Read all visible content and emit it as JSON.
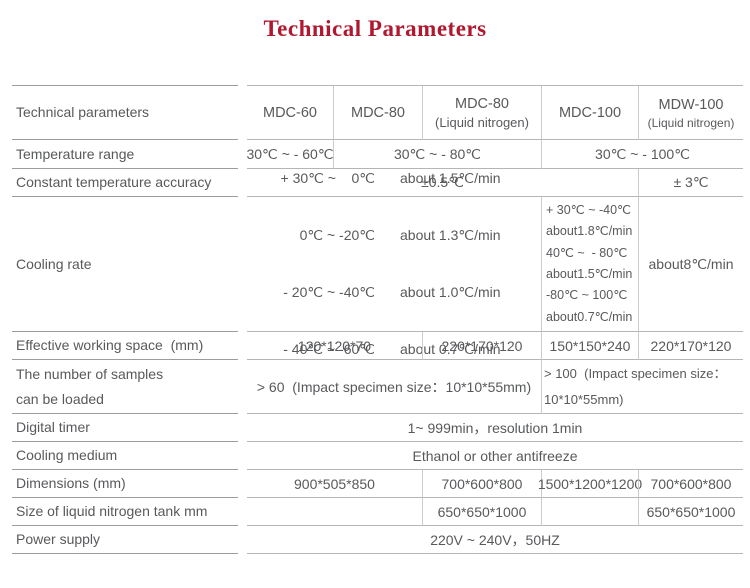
{
  "title": "Technical Parameters",
  "colors": {
    "title_red": "#b0182f",
    "body_text": "#58595b"
  },
  "table": {
    "header": {
      "label": "Technical parameters",
      "columns": [
        {
          "name": "MDC-60",
          "subname": ""
        },
        {
          "name": "MDC-80",
          "subname": ""
        },
        {
          "name": "MDC-80",
          "subname": "(Liquid nitrogen)"
        },
        {
          "name": "MDC-100",
          "subname": ""
        },
        {
          "name": "MDW-100",
          "subname": "(Liquid nitrogen)"
        }
      ]
    },
    "temperature_range": {
      "label": "Temperature range",
      "mdc60": "30℃ ~ - 60℃",
      "mdc80_group": "30℃ ~ - 80℃",
      "mdc100_group": "30℃ ~ - 100℃"
    },
    "accuracy": {
      "label": "Constant temperature accuracy",
      "standard": "±0.5℃",
      "mdw100": "± 3℃"
    },
    "cooling_rate": {
      "label": "Cooling rate",
      "standard": [
        {
          "range": "+ 30℃ ~    0℃",
          "rate": "about 1.5℃/min"
        },
        {
          "range": "0℃ ~ -20℃",
          "rate": "about 1.3℃/min"
        },
        {
          "range": "- 20℃ ~ -40℃",
          "rate": "about 1.0℃/min"
        },
        {
          "range": "- 40℃ ~ -60℃",
          "rate": "about 0.7℃/min"
        }
      ],
      "mdc100": {
        "line1": "+ 30℃ ~ -40℃",
        "line2": "about1.8℃/min",
        "line3": "40℃ ~  - 80℃",
        "line4": "about1.5℃/min",
        "line5": "-80℃ ~ 100℃",
        "line6": "about0.7℃/min"
      },
      "mdw100": "about8℃/min"
    },
    "working_space": {
      "label": "Effective working space  (mm)",
      "mdc60_80": "120*120*70",
      "mdc80ln": "220*170*120",
      "mdc100": "150*150*240",
      "mdw100": "220*170*120"
    },
    "samples": {
      "label_line1": "The number of samples",
      "label_line2": "can be loaded",
      "standard": "> 60  (Impact specimen size：10*10*55mm)",
      "mdc100_line1": "> 100  (Impact specimen size：",
      "mdc100_line2": "10*10*55mm)"
    },
    "digital_timer": {
      "label": "Digital timer",
      "value": "1~ 999min，resolution 1min"
    },
    "cooling_medium": {
      "label": "Cooling medium",
      "value": "Ethanol or other antifreeze"
    },
    "dimensions": {
      "label": "Dimensions (mm)",
      "mdc60_80": "900*505*850",
      "mdc80ln": "700*600*800",
      "mdc100": "1500*1200*1200",
      "mdw100": "700*600*800"
    },
    "nitrogen_tank": {
      "label": "Size of liquid nitrogen tank mm",
      "mdc80ln": "650*650*1000",
      "mdw100": "650*650*1000"
    },
    "power_supply": {
      "label": "Power supply",
      "value": "220V ~ 240V，50HZ"
    }
  }
}
